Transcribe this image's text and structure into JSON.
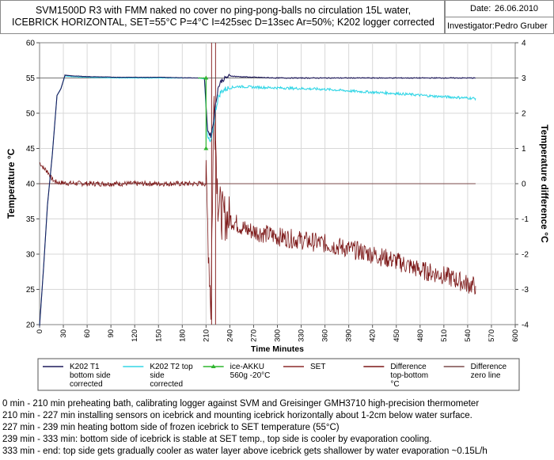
{
  "header": {
    "title_line1": "SVM1500D R3 with FMM naked no cover no ping-pong-balls no circulation 15L water,",
    "title_line2": "ICEBRICK HORIZONTAL, SET=55°C P=4°C I=425sec D=13sec Ar=50%; K202 logger corrected",
    "date_label": "Date:",
    "date_value": "26.06.2010",
    "investigator_label": "Investigator:",
    "investigator_value": "Pedro Gruber"
  },
  "chart_data": {
    "type": "line",
    "title": "SVM1500D R3 with FMM naked no cover no ping-pong-balls no circulation 15L water, ICEBRICK HORIZONTAL, SET=55°C P=4°C I=425sec D=13sec Ar=50%; K202 logger corrected",
    "xlabel": "Time Minutes",
    "ylabel": "Temperature °C",
    "y2label": "Temperature difference °C",
    "xlim": [
      0,
      600
    ],
    "ylim": [
      20,
      60
    ],
    "y2lim": [
      -4,
      4
    ],
    "x_ticks": [
      0,
      30,
      60,
      90,
      120,
      150,
      180,
      210,
      240,
      270,
      300,
      330,
      360,
      390,
      420,
      450,
      480,
      510,
      540,
      570,
      600
    ],
    "y_ticks": [
      20,
      25,
      30,
      35,
      40,
      45,
      50,
      55,
      60
    ],
    "y2_ticks": [
      -4,
      -3,
      -2,
      -1,
      0,
      1,
      2,
      3,
      4
    ],
    "grid": "horizontal and vertical",
    "legend_position": "bottom",
    "series": [
      {
        "name": "K202 T1 bottom side corrected",
        "color": "#1f1a5c",
        "axis": "left",
        "x": [
          0,
          5,
          10,
          16,
          22,
          27,
          32,
          40,
          60,
          100,
          150,
          200,
          208,
          212,
          216,
          219,
          222,
          225,
          228,
          232,
          236,
          240,
          250,
          270,
          300,
          330,
          360,
          400,
          450,
          500,
          550
        ],
        "y": [
          19.8,
          28,
          37,
          44,
          52.5,
          53.5,
          55.4,
          55.3,
          55.2,
          55.1,
          55.1,
          55.0,
          55.0,
          47.5,
          46.8,
          48.5,
          51.2,
          53.5,
          54.4,
          54.8,
          55.1,
          55.3,
          55.2,
          55.1,
          55.0,
          55.0,
          55.0,
          55.0,
          55.0,
          55.0,
          55.0
        ]
      },
      {
        "name": "K202 T2 top side corrected",
        "color": "#33d6e6",
        "axis": "left",
        "x": [
          0,
          5,
          10,
          16,
          22,
          27,
          32,
          40,
          60,
          100,
          150,
          200,
          208,
          212,
          216,
          219,
          222,
          225,
          228,
          232,
          236,
          240,
          250,
          270,
          300,
          330,
          360,
          400,
          450,
          500,
          550
        ],
        "y": [
          19.8,
          28,
          37,
          44,
          52.5,
          53.5,
          55.3,
          55.2,
          55.1,
          55.0,
          55.0,
          55.0,
          54.9,
          46.5,
          45.8,
          48,
          50.5,
          52,
          52.9,
          53.3,
          53.5,
          53.6,
          53.8,
          53.7,
          53.6,
          53.5,
          53.4,
          53.1,
          52.8,
          52.4,
          52.1
        ]
      },
      {
        "name": "ice-AKKU 560g -20°C",
        "color": "#2fb52f",
        "axis": "left",
        "x": [
          210,
          210
        ],
        "y": [
          45,
          55
        ]
      },
      {
        "name": "SET",
        "color": "#8b2a2a",
        "axis": "left",
        "x": [
          0,
          210,
          210,
          600
        ],
        "y": [
          55,
          55,
          55,
          55
        ]
      },
      {
        "name": "Difference top-bottom °C",
        "color": "#7b1616",
        "axis": "right",
        "x": [
          0,
          5,
          10,
          15,
          20,
          30,
          60,
          100,
          150,
          200,
          210,
          216,
          220,
          225,
          230,
          240,
          260,
          280,
          300,
          330,
          360,
          390,
          420,
          450,
          480,
          510,
          540,
          550
        ],
        "y": [
          0.6,
          0.45,
          0.35,
          0.15,
          0.05,
          0.02,
          0.0,
          0.0,
          0.0,
          0.0,
          0.0,
          -3.5,
          2.5,
          -0.5,
          -0.9,
          -1.0,
          -1.3,
          -1.4,
          -1.5,
          -1.6,
          -1.7,
          -1.85,
          -2.0,
          -2.2,
          -2.45,
          -2.6,
          -2.85,
          -2.9
        ]
      },
      {
        "name": "Difference zero line",
        "color": "#7a4a4a",
        "axis": "right",
        "x": [
          0,
          550
        ],
        "y": [
          0,
          0
        ]
      }
    ],
    "legend": [
      {
        "label": "K202 T1 bottom side corrected",
        "color": "#1f1a5c",
        "marker": "none"
      },
      {
        "label": "K202 T2 top side corrected",
        "color": "#33d6e6",
        "marker": "none"
      },
      {
        "label": "ice-AKKU 560g -20°C",
        "color": "#2fb52f",
        "marker": "triangle"
      },
      {
        "label": "SET",
        "color": "#8b2a2a",
        "marker": "none"
      },
      {
        "label": "Difference top-bottom °C",
        "color": "#7b1616",
        "marker": "none"
      },
      {
        "label": "Difference zero line",
        "color": "#7a4a4a",
        "marker": "none"
      }
    ],
    "annotations": [
      "0 min - 210 min preheating bath, calibrating logger against SVM and Greisinger GMH3710 high-precision thermometer",
      "210 min - 227 min installing sensors on icebrick and mounting icebrick horizontally about 1-2cm below water surface.",
      "227 min - 239 min heating bottom side of frozen icebrick to SET temperature (55°C)",
      "239 min - 333 min: bottom side of icebrick is stable at SET temp., top side is cooler by evaporation cooling.",
      "333 min - end:  top side gets gradually cooler as water layer above icebrick gets shallower by water evaporation ~0.15L/h"
    ]
  }
}
